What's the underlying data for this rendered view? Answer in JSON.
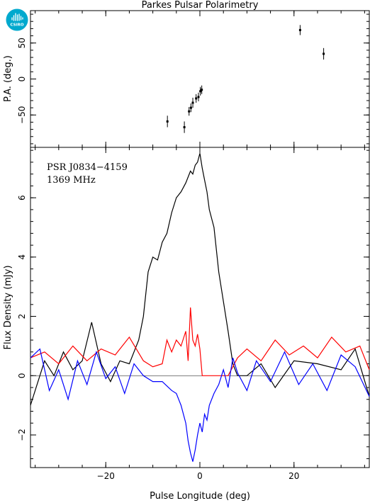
{
  "logo": {
    "text": "CSIRO",
    "color": "#00a9ce",
    "icon": "csiro-logo-icon"
  },
  "chart_data": [
    {
      "type": "scatter",
      "title": "Parkes Pulsar Polarimetry",
      "ylabel": "P.A. (deg.)",
      "xlim": [
        -36,
        36
      ],
      "ylim": [
        -95,
        95
      ],
      "yticks": [
        -50,
        0,
        50
      ],
      "xticks": [
        -20,
        0,
        20
      ],
      "grid": false,
      "points": [
        {
          "x": -6.9,
          "y": -59,
          "err": 8
        },
        {
          "x": -3.3,
          "y": -67,
          "err": 8
        },
        {
          "x": -2.3,
          "y": -45,
          "err": 6
        },
        {
          "x": -1.9,
          "y": -40,
          "err": 6
        },
        {
          "x": -1.5,
          "y": -33,
          "err": 7
        },
        {
          "x": -0.8,
          "y": -27,
          "err": 6
        },
        {
          "x": -0.3,
          "y": -25,
          "err": 6
        },
        {
          "x": 0.1,
          "y": -17,
          "err": 6
        },
        {
          "x": 0.4,
          "y": -15,
          "err": 6
        },
        {
          "x": 21.3,
          "y": 68,
          "err": 7
        },
        {
          "x": 26.3,
          "y": 35,
          "err": 8
        }
      ]
    },
    {
      "type": "line",
      "xlabel": "Pulse Longitude (deg)",
      "ylabel": "Flux Density (mJy)",
      "xlim": [
        -36,
        36
      ],
      "ylim": [
        -3.1,
        7.7
      ],
      "yticks": [
        -2,
        0,
        2,
        4,
        6
      ],
      "xticks": [
        -20,
        0,
        20
      ],
      "grid": false,
      "annotations": [
        "PSR J0834−4159",
        "1369 MHz"
      ],
      "series": [
        {
          "color": "#000000",
          "x": [
            -36,
            -33,
            -31,
            -29,
            -27,
            -25,
            -23,
            -21,
            -19,
            -17,
            -15,
            -13,
            -12,
            -11,
            -10,
            -9,
            -8,
            -7,
            -6,
            -5,
            -4,
            -3,
            -2,
            -1.5,
            -1,
            -0.5,
            0,
            0.5,
            1,
            1.5,
            2,
            3,
            4,
            5,
            6,
            7,
            8,
            10,
            13,
            16,
            20,
            25,
            30,
            33,
            36
          ],
          "y": [
            -1.0,
            0.5,
            0.0,
            0.8,
            0.2,
            0.5,
            1.8,
            0.4,
            -0.2,
            0.5,
            0.4,
            1.2,
            2.0,
            3.5,
            4.0,
            3.9,
            4.5,
            4.8,
            5.5,
            6.0,
            6.2,
            6.5,
            6.9,
            6.8,
            7.1,
            7.2,
            7.5,
            7.0,
            6.6,
            6.2,
            5.6,
            5.0,
            3.5,
            2.5,
            1.5,
            0.4,
            0.0,
            0.0,
            0.4,
            -0.4,
            0.5,
            0.4,
            0.2,
            0.9,
            -0.7
          ]
        },
        {
          "color": "#ff0000",
          "x": [
            -36,
            -33,
            -30,
            -27,
            -24,
            -21,
            -18,
            -15,
            -12,
            -10,
            -8,
            -7,
            -6,
            -5,
            -4,
            -3,
            -2.5,
            -2,
            -1.5,
            -1,
            -0.5,
            0,
            0.5,
            1,
            1.5,
            2,
            3,
            4,
            5,
            6,
            8,
            10,
            13,
            16,
            19,
            22,
            25,
            28,
            31,
            34,
            36
          ],
          "y": [
            0.6,
            0.8,
            0.4,
            1.0,
            0.5,
            0.9,
            0.7,
            1.3,
            0.5,
            0.3,
            0.4,
            1.2,
            0.8,
            1.2,
            1.0,
            1.5,
            0.5,
            2.3,
            1.2,
            1.0,
            1.4,
            0.9,
            0.0,
            0.0,
            0.0,
            0.0,
            0.0,
            0.0,
            0.0,
            0.0,
            0.6,
            0.9,
            0.5,
            1.2,
            0.7,
            1.0,
            0.6,
            1.3,
            0.8,
            1.0,
            0.2
          ]
        },
        {
          "color": "#0000ff",
          "x": [
            -36,
            -34,
            -32,
            -30,
            -28,
            -26,
            -24,
            -22,
            -20,
            -18,
            -16,
            -14,
            -12,
            -10,
            -8,
            -6,
            -5,
            -4,
            -3,
            -2.5,
            -2,
            -1.5,
            -1,
            -0.5,
            0,
            0.5,
            1,
            1.5,
            2,
            3,
            4,
            5,
            6,
            7,
            8,
            10,
            12,
            15,
            18,
            21,
            24,
            27,
            30,
            33,
            36
          ],
          "y": [
            0.6,
            0.9,
            -0.5,
            0.2,
            -0.8,
            0.5,
            -0.3,
            0.8,
            -0.1,
            0.3,
            -0.6,
            0.4,
            0.0,
            -0.2,
            -0.2,
            -0.5,
            -0.6,
            -1.0,
            -1.6,
            -2.2,
            -2.6,
            -2.9,
            -2.5,
            -2.0,
            -1.6,
            -1.9,
            -1.3,
            -1.5,
            -1.0,
            -0.6,
            -0.3,
            0.2,
            -0.4,
            0.6,
            0.1,
            -0.5,
            0.5,
            -0.2,
            0.8,
            -0.3,
            0.4,
            -0.5,
            0.7,
            0.3,
            -0.7
          ]
        }
      ]
    }
  ]
}
